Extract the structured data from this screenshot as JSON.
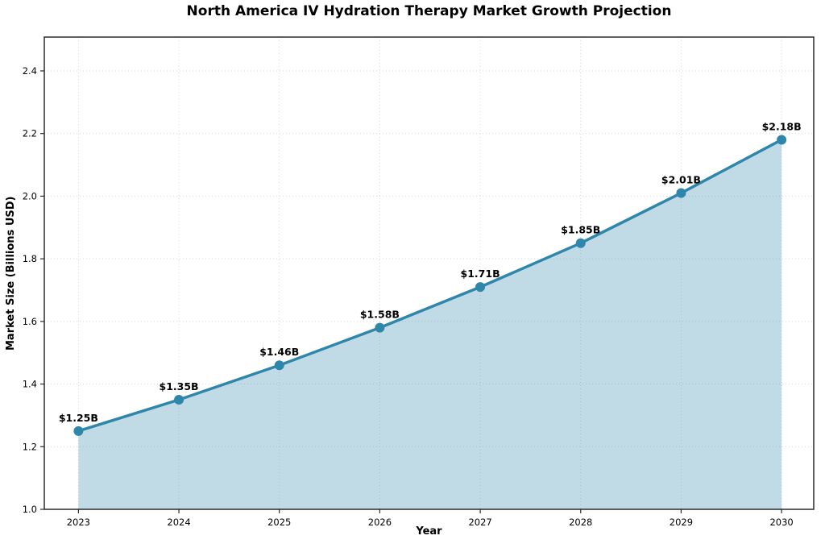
{
  "chart_data": {
    "type": "area",
    "title": "North America IV Hydration Therapy Market Growth Projection",
    "xlabel": "Year",
    "ylabel": "Market Size (Billions USD)",
    "x": [
      2023,
      2024,
      2025,
      2026,
      2027,
      2028,
      2029,
      2030
    ],
    "values": [
      1.25,
      1.35,
      1.46,
      1.58,
      1.71,
      1.85,
      2.01,
      2.18
    ],
    "point_labels": [
      "$1.25B",
      "$1.35B",
      "$1.46B",
      "$1.58B",
      "$1.71B",
      "$1.85B",
      "$2.01B",
      "$2.18B"
    ],
    "xtick_labels": [
      "2023",
      "2024",
      "2025",
      "2026",
      "2027",
      "2028",
      "2029",
      "2030"
    ],
    "ytick_values": [
      1.0,
      1.2,
      1.4,
      1.6,
      1.8,
      2.0,
      2.2,
      2.4
    ],
    "ytick_labels": [
      "1.0",
      "1.2",
      "1.4",
      "1.6",
      "1.8",
      "2.0",
      "2.2",
      "2.4"
    ],
    "xlim": [
      2022.66,
      2030.32
    ],
    "ylim": [
      1.0,
      2.508
    ],
    "grid": true,
    "grid_style": "dotted",
    "legend": "none",
    "colors": {
      "line": "#2E86AB",
      "fill": "rgba(46, 134, 171, 0.30)",
      "grid": "#d9d9d9",
      "spine": "#2b2b2b",
      "text": "#000000"
    }
  }
}
